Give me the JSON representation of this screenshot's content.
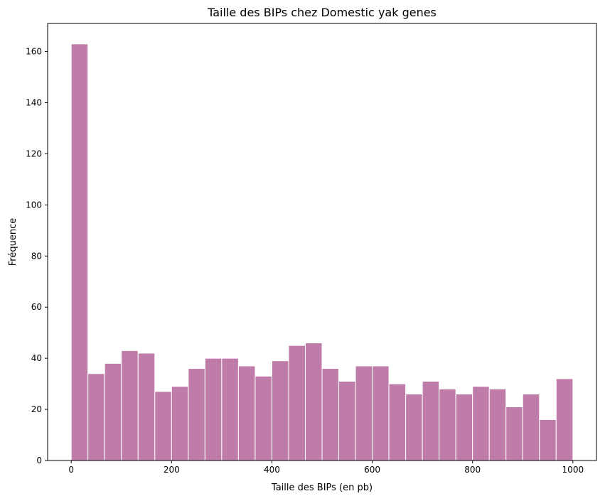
{
  "chart_data": {
    "type": "bar",
    "title": "Taille des BIPs chez Domestic yak genes",
    "xlabel": "Taille des BIPs (en pb)",
    "ylabel": "Fréquence",
    "bin_width": 33.33,
    "x_start": 0,
    "x_end": 1000,
    "values": [
      163,
      34,
      38,
      43,
      42,
      27,
      29,
      36,
      40,
      40,
      37,
      33,
      39,
      45,
      46,
      36,
      31,
      37,
      37,
      30,
      26,
      31,
      28,
      26,
      29,
      28,
      21,
      26,
      16,
      32
    ],
    "xlim": [
      -47,
      1047
    ],
    "ylim": [
      0,
      171
    ],
    "xticks": [
      0,
      200,
      400,
      600,
      800,
      1000
    ],
    "yticks": [
      0,
      20,
      40,
      60,
      80,
      100,
      120,
      140,
      160
    ],
    "bar_color": "#c07ca8",
    "edge_color": "#ffffff",
    "grid": false,
    "legend": false
  }
}
